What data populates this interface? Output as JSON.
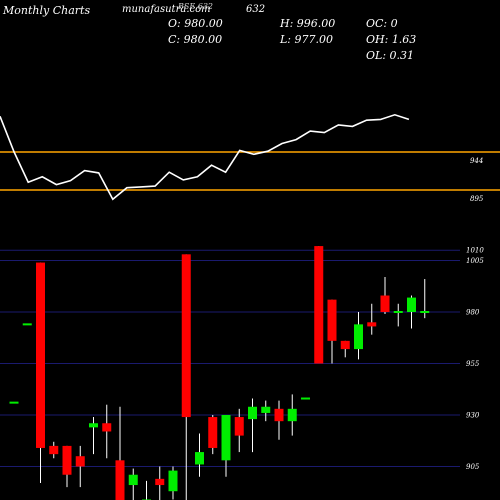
{
  "header": {
    "brand": "Monthly Charts",
    "site": "munafasutra.com",
    "symbol": "BSE 632",
    "code": "632",
    "open": "O: 980.00",
    "close": "C: 980.00",
    "high": "H: 996.00",
    "low": "L: 977.00",
    "oc": "OC: 0",
    "oh": "OH: 1.63",
    "ol": "OL: 0.31"
  },
  "colors": {
    "up": "#00ee00",
    "down": "#ff0000",
    "neutral": "#00ee00",
    "line": "#ffffff",
    "level": "#ffa500",
    "grid": "#1a1a6e"
  },
  "chart_data": [
    {
      "type": "line",
      "title": "",
      "levels": [
        944,
        895
      ],
      "level_labels": [
        "944",
        "895"
      ],
      "values": [
        990,
        944,
        905,
        912,
        902,
        907,
        920,
        917,
        883,
        898,
        899,
        900,
        918,
        908,
        912,
        927,
        918,
        946,
        941,
        945,
        955,
        960,
        971,
        969,
        979,
        977,
        985,
        986,
        992,
        986
      ]
    },
    {
      "type": "candlestick",
      "title": "",
      "y_ticks": [
        1010,
        1005,
        980,
        955,
        930,
        905
      ],
      "candles": [
        {
          "o": 936,
          "h": 936,
          "l": 936,
          "c": 936,
          "color": "neutral"
        },
        {
          "o": 974,
          "h": 974,
          "l": 974,
          "c": 974,
          "color": "neutral"
        },
        {
          "o": 1004,
          "h": 1004,
          "l": 897,
          "c": 914,
          "color": "down"
        },
        {
          "o": 915,
          "h": 917,
          "l": 909,
          "c": 911,
          "color": "down"
        },
        {
          "o": 915,
          "h": 915,
          "l": 895,
          "c": 901,
          "color": "down"
        },
        {
          "o": 910,
          "h": 915,
          "l": 895,
          "c": 905,
          "color": "down"
        },
        {
          "o": 924,
          "h": 929,
          "l": 911,
          "c": 926,
          "color": "up"
        },
        {
          "o": 926,
          "h": 935,
          "l": 909,
          "c": 922,
          "color": "down"
        },
        {
          "o": 908,
          "h": 934,
          "l": 880,
          "c": 882,
          "color": "down"
        },
        {
          "o": 901,
          "h": 904,
          "l": 882,
          "c": 896,
          "color": "up"
        },
        {
          "o": 889,
          "h": 898,
          "l": 875,
          "c": 879,
          "color": "up"
        },
        {
          "o": 899,
          "h": 905,
          "l": 880,
          "c": 896,
          "color": "down"
        },
        {
          "o": 893,
          "h": 905,
          "l": 889,
          "c": 903,
          "color": "up"
        },
        {
          "o": 1008,
          "h": 1008,
          "l": 884,
          "c": 929,
          "color": "down"
        },
        {
          "o": 906,
          "h": 921,
          "l": 900,
          "c": 912,
          "color": "up"
        },
        {
          "o": 929,
          "h": 930,
          "l": 911,
          "c": 914,
          "color": "down"
        },
        {
          "o": 908,
          "h": 930,
          "l": 900,
          "c": 930,
          "color": "up"
        },
        {
          "o": 929,
          "h": 933,
          "l": 912,
          "c": 920,
          "color": "down"
        },
        {
          "o": 928,
          "h": 938,
          "l": 912,
          "c": 934,
          "color": "up"
        },
        {
          "o": 931,
          "h": 937,
          "l": 927,
          "c": 934,
          "color": "up"
        },
        {
          "o": 933,
          "h": 937,
          "l": 918,
          "c": 927,
          "color": "down"
        },
        {
          "o": 927,
          "h": 940,
          "l": 920,
          "c": 933,
          "color": "up"
        },
        {
          "o": 938,
          "h": 938,
          "l": 938,
          "c": 938,
          "color": "neutral"
        },
        {
          "o": 1012,
          "h": 1012,
          "l": 955,
          "c": 955,
          "color": "down"
        },
        {
          "o": 986,
          "h": 986,
          "l": 955,
          "c": 966,
          "color": "down"
        },
        {
          "o": 966,
          "h": 966,
          "l": 958,
          "c": 962,
          "color": "down"
        },
        {
          "o": 962,
          "h": 980,
          "l": 957,
          "c": 974,
          "color": "up"
        },
        {
          "o": 975,
          "h": 984,
          "l": 969,
          "c": 973,
          "color": "down"
        },
        {
          "o": 988,
          "h": 997,
          "l": 979,
          "c": 980,
          "color": "down"
        },
        {
          "o": 980,
          "h": 984,
          "l": 973,
          "c": 980,
          "color": "neutral"
        },
        {
          "o": 980,
          "h": 988,
          "l": 972,
          "c": 987,
          "color": "up"
        },
        {
          "o": 980,
          "h": 996,
          "l": 977,
          "c": 980,
          "color": "neutral"
        }
      ]
    }
  ]
}
